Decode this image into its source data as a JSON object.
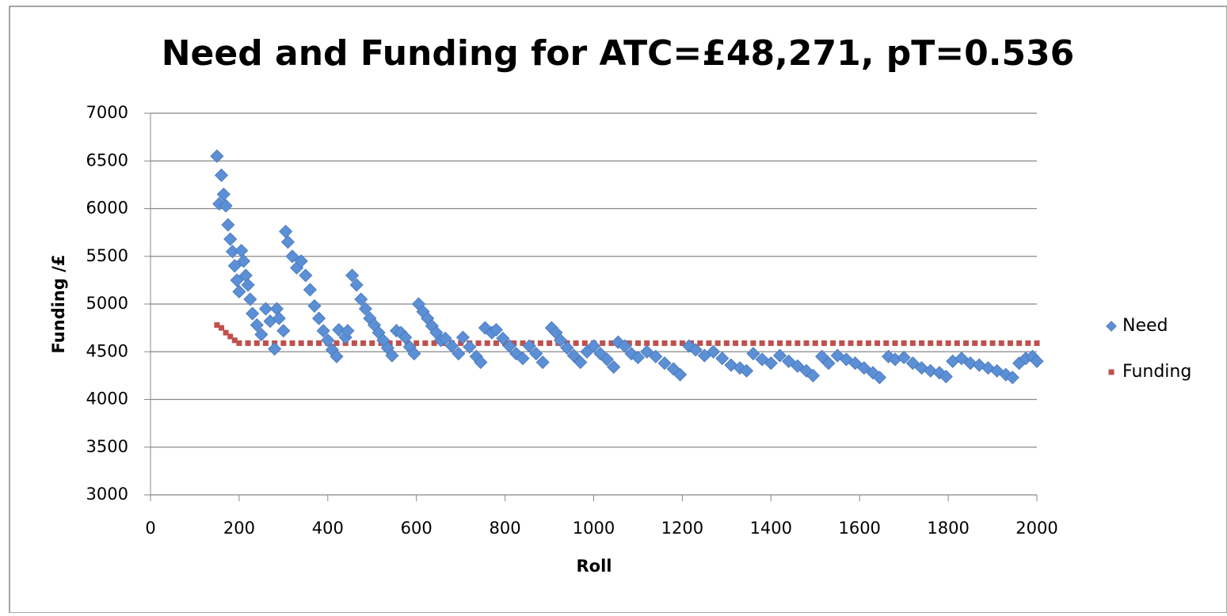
{
  "chart_data": {
    "type": "scatter",
    "title": "Need and Funding for ATC=£48,271, pT=0.536",
    "x_label": "Roll",
    "y_label": "Funding /£",
    "xlim": [
      0,
      2000
    ],
    "xticks": [
      0,
      200,
      400,
      600,
      800,
      1000,
      1200,
      1400,
      1600,
      1800,
      2000
    ],
    "ylim": [
      3000,
      7000
    ],
    "yticks": [
      3000,
      3500,
      4000,
      4500,
      5000,
      5500,
      6000,
      6500,
      7000
    ],
    "grid": true,
    "legend": "right",
    "series": [
      {
        "name": "Need",
        "color": "#5b8fd6",
        "marker": "diamond",
        "x": [
          150,
          155,
          160,
          165,
          170,
          175,
          180,
          185,
          190,
          195,
          200,
          205,
          210,
          215,
          220,
          225,
          230,
          240,
          250,
          260,
          270,
          280,
          285,
          290,
          300,
          305,
          310,
          320,
          330,
          340,
          350,
          360,
          370,
          380,
          390,
          400,
          410,
          420,
          425,
          440,
          445,
          455,
          465,
          475,
          485,
          495,
          505,
          515,
          525,
          535,
          545,
          555,
          565,
          575,
          585,
          595,
          605,
          615,
          625,
          635,
          645,
          655,
          665,
          680,
          695,
          705,
          720,
          735,
          745,
          755,
          770,
          780,
          795,
          810,
          825,
          840,
          855,
          870,
          885,
          905,
          915,
          925,
          940,
          955,
          970,
          985,
          1000,
          1015,
          1030,
          1045,
          1055,
          1070,
          1085,
          1100,
          1120,
          1140,
          1160,
          1180,
          1195,
          1215,
          1230,
          1250,
          1270,
          1290,
          1310,
          1330,
          1345,
          1360,
          1380,
          1400,
          1420,
          1440,
          1460,
          1480,
          1495,
          1515,
          1530,
          1550,
          1570,
          1590,
          1610,
          1630,
          1645,
          1665,
          1680,
          1700,
          1720,
          1740,
          1760,
          1780,
          1795,
          1810,
          1830,
          1850,
          1870,
          1890,
          1910,
          1930,
          1945,
          1960,
          1975,
          1990,
          2000
        ],
        "values": [
          6550,
          6050,
          6350,
          6150,
          6030,
          5830,
          5680,
          5550,
          5400,
          5250,
          5130,
          5560,
          5450,
          5300,
          5200,
          5050,
          4900,
          4780,
          4680,
          4950,
          4820,
          4530,
          4950,
          4850,
          4720,
          5760,
          5650,
          5500,
          5380,
          5450,
          5300,
          5150,
          4980,
          4850,
          4720,
          4620,
          4520,
          4450,
          4730,
          4650,
          4720,
          5300,
          5200,
          5050,
          4950,
          4850,
          4780,
          4700,
          4620,
          4540,
          4460,
          4720,
          4700,
          4650,
          4550,
          4480,
          5000,
          4920,
          4850,
          4770,
          4700,
          4620,
          4640,
          4560,
          4480,
          4650,
          4550,
          4450,
          4390,
          4750,
          4700,
          4730,
          4640,
          4560,
          4480,
          4430,
          4560,
          4480,
          4390,
          4750,
          4700,
          4620,
          4540,
          4460,
          4390,
          4500,
          4560,
          4480,
          4420,
          4340,
          4600,
          4560,
          4480,
          4440,
          4500,
          4450,
          4380,
          4320,
          4260,
          4560,
          4520,
          4460,
          4500,
          4430,
          4360,
          4330,
          4300,
          4480,
          4420,
          4380,
          4460,
          4400,
          4350,
          4300,
          4250,
          4450,
          4380,
          4460,
          4420,
          4380,
          4330,
          4280,
          4230,
          4450,
          4420,
          4440,
          4380,
          4330,
          4300,
          4280,
          4240,
          4400,
          4430,
          4380,
          4360,
          4330,
          4300,
          4260,
          4230,
          4380,
          4430,
          4450,
          4400
        ]
      },
      {
        "name": "Funding",
        "color": "#c0504d",
        "marker": "square",
        "x": [
          150,
          160,
          170,
          180,
          190,
          200,
          220,
          240,
          260,
          280,
          300,
          320,
          340,
          360,
          380,
          400,
          420,
          440,
          460,
          480,
          500,
          520,
          540,
          560,
          580,
          600,
          620,
          640,
          660,
          680,
          700,
          720,
          740,
          760,
          780,
          800,
          820,
          840,
          860,
          880,
          900,
          920,
          940,
          960,
          980,
          1000,
          1020,
          1040,
          1060,
          1080,
          1100,
          1120,
          1140,
          1160,
          1180,
          1200,
          1220,
          1240,
          1260,
          1280,
          1300,
          1320,
          1340,
          1360,
          1380,
          1400,
          1420,
          1440,
          1460,
          1480,
          1500,
          1520,
          1540,
          1560,
          1580,
          1600,
          1620,
          1640,
          1660,
          1680,
          1700,
          1720,
          1740,
          1760,
          1780,
          1800,
          1820,
          1840,
          1860,
          1880,
          1900,
          1920,
          1940,
          1960,
          1980,
          2000
        ],
        "values": [
          4780,
          4750,
          4700,
          4660,
          4620,
          4590,
          4590,
          4590,
          4590,
          4590,
          4590,
          4590,
          4590,
          4590,
          4590,
          4590,
          4590,
          4590,
          4590,
          4590,
          4590,
          4590,
          4590,
          4590,
          4590,
          4590,
          4590,
          4590,
          4590,
          4590,
          4590,
          4590,
          4590,
          4590,
          4590,
          4590,
          4590,
          4590,
          4590,
          4590,
          4590,
          4590,
          4590,
          4590,
          4590,
          4590,
          4590,
          4590,
          4590,
          4590,
          4590,
          4590,
          4590,
          4590,
          4590,
          4590,
          4590,
          4590,
          4590,
          4590,
          4590,
          4590,
          4590,
          4590,
          4590,
          4590,
          4590,
          4590,
          4590,
          4590,
          4590,
          4590,
          4590,
          4590,
          4590,
          4590,
          4590,
          4590,
          4590,
          4590,
          4590,
          4590,
          4590,
          4590,
          4590,
          4590,
          4590,
          4590,
          4590,
          4590,
          4590,
          4590,
          4590,
          4590,
          4590,
          4590
        ]
      }
    ]
  }
}
